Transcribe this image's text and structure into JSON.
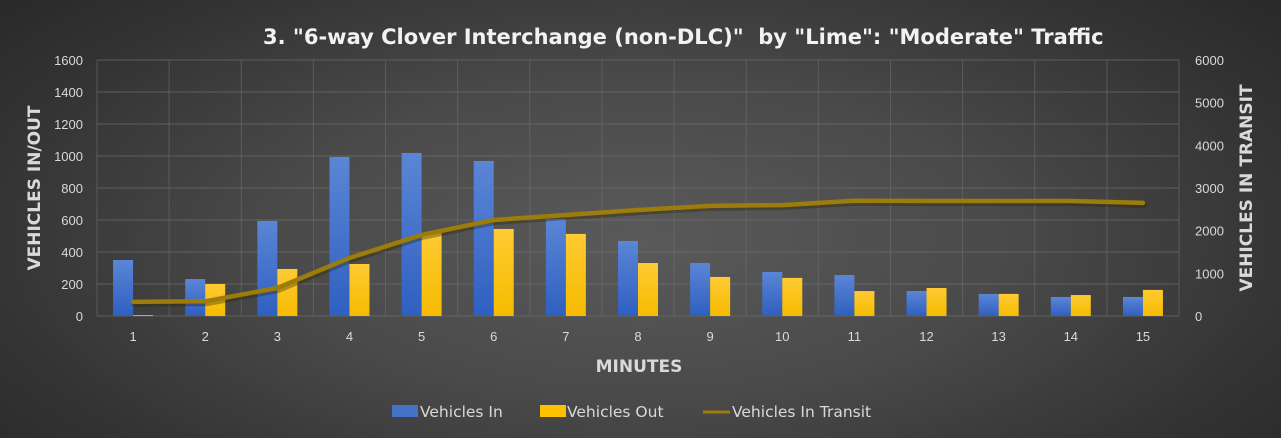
{
  "chart_data": {
    "type": "bar",
    "title": "3. \"6-way Clover Interchange (non-DLC)\"  by \"Lime\": \"Moderate\" Traffic",
    "xlabel": "MINUTES",
    "ylabel": "VEHICLES IN/OUT",
    "y2label": "VEHICLES IN TRANSIT",
    "categories": [
      "1",
      "2",
      "3",
      "4",
      "5",
      "6",
      "7",
      "8",
      "9",
      "10",
      "11",
      "12",
      "13",
      "14",
      "15"
    ],
    "ylim": [
      0,
      1600
    ],
    "y2lim": [
      0,
      6000
    ],
    "yticks": [
      "0",
      "200",
      "400",
      "600",
      "800",
      "1000",
      "1200",
      "1400",
      "1600"
    ],
    "y2ticks": [
      "0",
      "1000",
      "2000",
      "3000",
      "4000",
      "5000",
      "6000"
    ],
    "grid": true,
    "legend_position": "bottom",
    "series": [
      {
        "name": "Vehicles In",
        "type": "bar",
        "axis": "left",
        "color": "#4472c4",
        "values": [
          350,
          231,
          594,
          994,
          1019,
          969,
          606,
          469,
          331,
          275,
          256,
          156,
          138,
          119,
          119
        ]
      },
      {
        "name": "Vehicles Out",
        "type": "bar",
        "axis": "left",
        "color": "#ffc000",
        "values": [
          5,
          200,
          294,
          325,
          519,
          544,
          513,
          331,
          244,
          238,
          156,
          175,
          138,
          131,
          163
        ]
      },
      {
        "name": "Vehicles In Transit",
        "type": "line",
        "axis": "right",
        "color": "#9c7c0a",
        "values": [
          330,
          345,
          656,
          1360,
          1900,
          2250,
          2367,
          2484,
          2580,
          2600,
          2700,
          2695,
          2695,
          2695,
          2650
        ]
      }
    ]
  }
}
